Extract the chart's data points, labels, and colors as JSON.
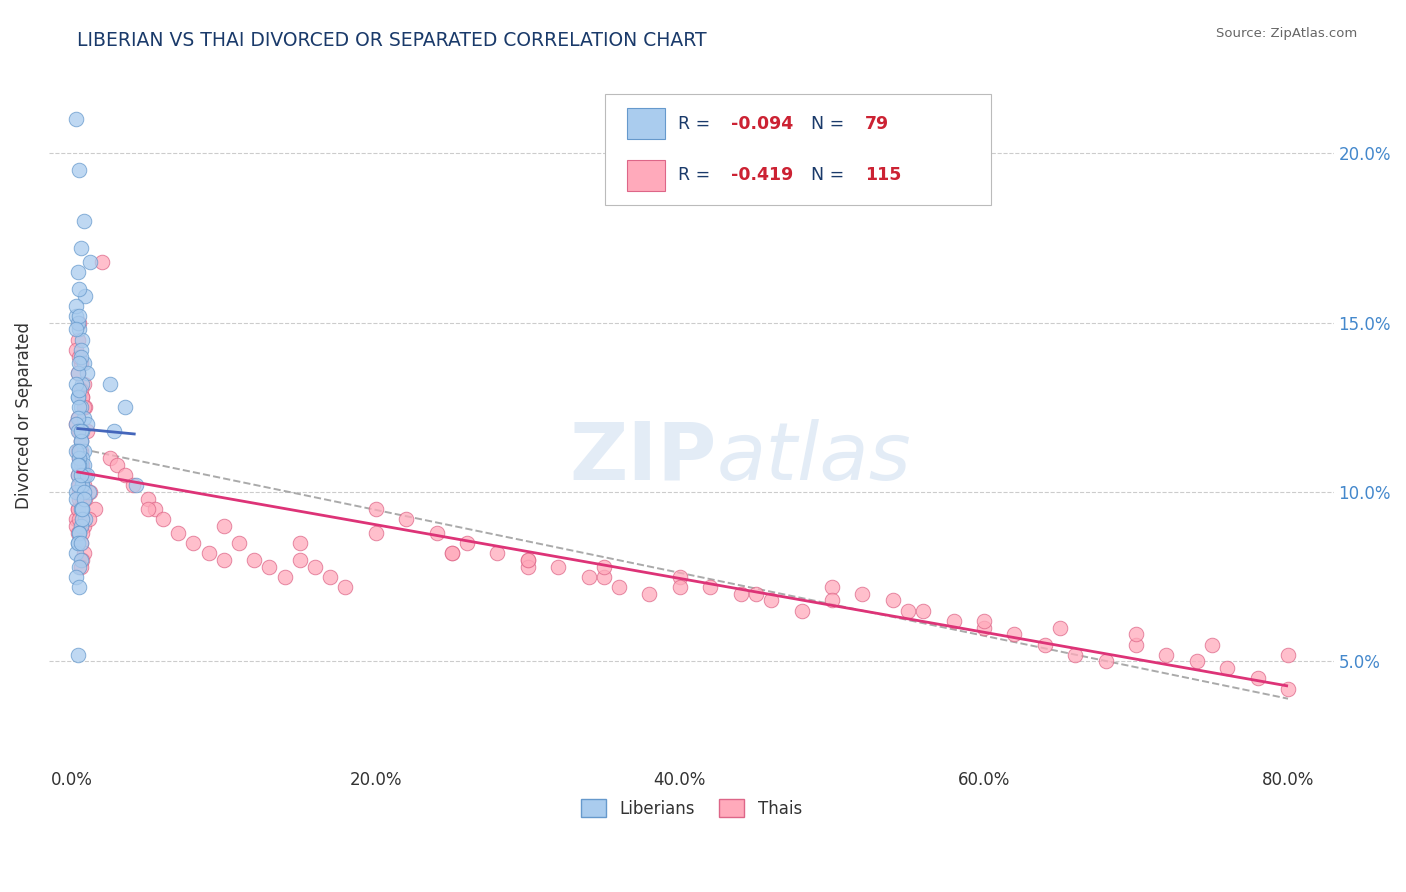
{
  "title": "LIBERIAN VS THAI DIVORCED OR SEPARATED CORRELATION CHART",
  "source_text": "Source: ZipAtlas.com",
  "ylabel": "Divorced or Separated",
  "y_tick_vals": [
    5.0,
    10.0,
    15.0,
    20.0
  ],
  "x_tick_vals": [
    0.0,
    20.0,
    40.0,
    60.0,
    80.0
  ],
  "xlim": [
    -1.5,
    83
  ],
  "ylim": [
    2.0,
    22.5
  ],
  "liberian_color": "#aaccee",
  "liberian_edge": "#6699cc",
  "thai_color": "#ffaabb",
  "thai_edge": "#dd6688",
  "trendline_liberian_color": "#4466bb",
  "trendline_thai_color": "#dd3377",
  "trendline_overall_color": "#aaaaaa",
  "legend_R1": "-0.094",
  "legend_N1": "79",
  "legend_R2": "-0.419",
  "legend_N2": "115",
  "legend_label1": "Liberians",
  "legend_label2": "Thais",
  "watermark": "ZIPatlas",
  "liberian_x": [
    0.3,
    0.5,
    0.8,
    1.2,
    0.6,
    0.4,
    0.9,
    0.3,
    0.5,
    0.7,
    0.4,
    0.6,
    0.8,
    1.0,
    0.5,
    0.3,
    0.7,
    0.4,
    0.6,
    0.5,
    0.3,
    0.8,
    0.6,
    0.4,
    1.0,
    0.5,
    0.7,
    0.3,
    0.6,
    0.4,
    0.8,
    0.5,
    0.7,
    0.4,
    0.6,
    0.3,
    0.9,
    0.5,
    0.7,
    0.4,
    1.1,
    0.6,
    0.3,
    0.8,
    0.5,
    0.4,
    0.7,
    0.6,
    0.3,
    1.0,
    0.5,
    0.4,
    0.6,
    0.8,
    0.3,
    0.5,
    0.7,
    0.4,
    0.9,
    0.6,
    3.5,
    4.2,
    0.5,
    0.4,
    0.6,
    0.3,
    0.7,
    0.5,
    0.4,
    0.6,
    0.8,
    0.5,
    0.3,
    0.7,
    2.5,
    2.8,
    0.5,
    0.4,
    0.6
  ],
  "liberian_y": [
    21.0,
    19.5,
    18.0,
    16.8,
    17.2,
    16.5,
    15.8,
    15.2,
    14.8,
    14.5,
    15.0,
    14.2,
    13.8,
    13.5,
    16.0,
    15.5,
    13.2,
    12.8,
    12.5,
    15.2,
    14.8,
    12.2,
    14.0,
    13.5,
    12.0,
    13.8,
    11.8,
    13.2,
    11.5,
    12.8,
    11.2,
    12.5,
    11.0,
    12.2,
    10.8,
    12.0,
    10.5,
    13.0,
    10.2,
    11.8,
    10.0,
    11.5,
    11.2,
    10.8,
    11.0,
    10.5,
    10.2,
    11.8,
    10.0,
    10.5,
    10.8,
    10.2,
    10.5,
    10.0,
    9.8,
    11.2,
    9.5,
    10.8,
    9.2,
    9.0,
    12.5,
    10.2,
    8.8,
    8.5,
    9.5,
    8.2,
    9.2,
    8.8,
    8.5,
    8.0,
    9.8,
    7.8,
    7.5,
    9.5,
    13.2,
    11.8,
    7.2,
    5.2,
    8.5
  ],
  "thai_x": [
    0.4,
    0.6,
    0.5,
    0.8,
    0.3,
    0.7,
    0.4,
    0.9,
    0.5,
    0.6,
    0.4,
    0.7,
    0.5,
    0.8,
    0.3,
    0.6,
    0.4,
    1.0,
    0.5,
    0.7,
    0.4,
    0.6,
    0.8,
    0.5,
    0.7,
    0.4,
    0.6,
    0.3,
    0.8,
    0.5,
    0.7,
    0.4,
    0.6,
    0.5,
    0.8,
    0.3,
    0.7,
    0.4,
    0.6,
    0.5,
    1.2,
    0.8,
    1.5,
    0.9,
    1.1,
    2.0,
    2.5,
    3.0,
    3.5,
    4.0,
    5.0,
    5.5,
    6.0,
    7.0,
    8.0,
    9.0,
    10.0,
    11.0,
    12.0,
    13.0,
    14.0,
    15.0,
    16.0,
    17.0,
    18.0,
    20.0,
    22.0,
    24.0,
    26.0,
    28.0,
    30.0,
    32.0,
    34.0,
    36.0,
    38.0,
    40.0,
    42.0,
    44.0,
    46.0,
    48.0,
    50.0,
    52.0,
    54.0,
    56.0,
    58.0,
    60.0,
    62.0,
    64.0,
    66.0,
    68.0,
    70.0,
    72.0,
    74.0,
    76.0,
    78.0,
    80.0,
    25.0,
    30.0,
    35.0,
    40.0,
    45.0,
    50.0,
    55.0,
    60.0,
    65.0,
    70.0,
    75.0,
    80.0,
    5.0,
    10.0,
    15.0,
    20.0,
    25.0,
    30.0,
    35.0
  ],
  "thai_y": [
    14.5,
    13.8,
    15.0,
    13.2,
    14.2,
    12.8,
    13.5,
    12.5,
    14.0,
    13.0,
    12.2,
    12.8,
    11.8,
    12.5,
    12.0,
    11.5,
    11.2,
    11.8,
    11.0,
    10.8,
    10.5,
    11.2,
    10.2,
    10.0,
    9.8,
    9.5,
    10.5,
    9.2,
    9.0,
    10.2,
    8.8,
    9.5,
    8.5,
    9.8,
    8.2,
    9.0,
    8.0,
    8.8,
    7.8,
    9.2,
    10.0,
    10.5,
    9.5,
    9.8,
    9.2,
    16.8,
    11.0,
    10.8,
    10.5,
    10.2,
    9.8,
    9.5,
    9.2,
    8.8,
    8.5,
    8.2,
    8.0,
    8.5,
    8.0,
    7.8,
    7.5,
    8.0,
    7.8,
    7.5,
    7.2,
    9.5,
    9.2,
    8.8,
    8.5,
    8.2,
    8.0,
    7.8,
    7.5,
    7.2,
    7.0,
    7.5,
    7.2,
    7.0,
    6.8,
    6.5,
    7.2,
    7.0,
    6.8,
    6.5,
    6.2,
    6.0,
    5.8,
    5.5,
    5.2,
    5.0,
    5.5,
    5.2,
    5.0,
    4.8,
    4.5,
    4.2,
    8.2,
    7.8,
    7.5,
    7.2,
    7.0,
    6.8,
    6.5,
    6.2,
    6.0,
    5.8,
    5.5,
    5.2,
    9.5,
    9.0,
    8.5,
    8.8,
    8.2,
    8.0,
    7.8
  ],
  "scatter_size": 110,
  "scatter_alpha": 0.75,
  "grid_color": "#cccccc",
  "title_color": "#1a3a6a",
  "source_color": "#666666",
  "tick_color": "#333333",
  "right_tick_color": "#4488cc",
  "legend_text_color": "#1a3a6a",
  "legend_value_color": "#cc2233"
}
